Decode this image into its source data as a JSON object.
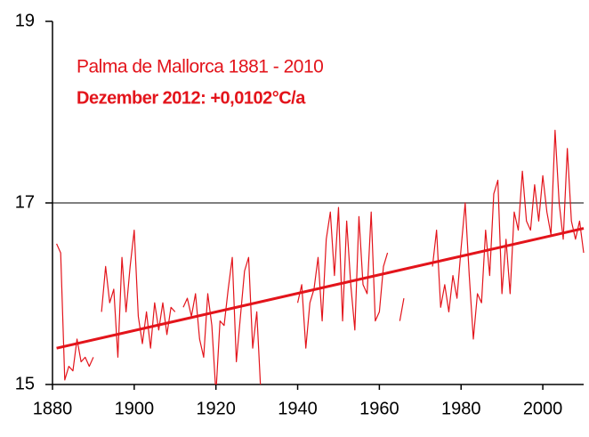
{
  "chart_data": {
    "type": "line",
    "title": "Palma de Mallorca 1881 - 2010",
    "subtitle": "Dezember 2012: +0,0102°C/a",
    "x": [
      1881,
      1882,
      1883,
      1884,
      1885,
      1886,
      1887,
      1888,
      1889,
      1890,
      1891,
      1892,
      1893,
      1894,
      1895,
      1896,
      1897,
      1898,
      1899,
      1900,
      1901,
      1902,
      1903,
      1904,
      1905,
      1906,
      1907,
      1908,
      1909,
      1910,
      1911,
      1912,
      1913,
      1914,
      1915,
      1916,
      1917,
      1918,
      1919,
      1920,
      1921,
      1922,
      1923,
      1924,
      1925,
      1926,
      1927,
      1928,
      1929,
      1930,
      1931,
      1932,
      1933,
      1934,
      1935,
      1936,
      1937,
      1938,
      1939,
      1940,
      1941,
      1942,
      1943,
      1944,
      1945,
      1946,
      1947,
      1948,
      1949,
      1950,
      1951,
      1952,
      1953,
      1954,
      1955,
      1956,
      1957,
      1958,
      1959,
      1960,
      1961,
      1962,
      1963,
      1964,
      1965,
      1966,
      1967,
      1968,
      1969,
      1970,
      1971,
      1972,
      1973,
      1974,
      1975,
      1976,
      1977,
      1978,
      1979,
      1980,
      1981,
      1982,
      1983,
      1984,
      1985,
      1986,
      1987,
      1988,
      1989,
      1990,
      1991,
      1992,
      1993,
      1994,
      1995,
      1996,
      1997,
      1998,
      1999,
      2000,
      2001,
      2002,
      2003,
      2004,
      2005,
      2006,
      2007,
      2008,
      2009,
      2010
    ],
    "series": [
      {
        "color": "#e3141b",
        "values": [
          16.55,
          16.45,
          15.05,
          15.2,
          15.15,
          15.5,
          15.25,
          15.3,
          15.2,
          15.3,
          null,
          15.8,
          16.3,
          15.9,
          16.05,
          15.3,
          16.4,
          15.8,
          16.3,
          16.7,
          15.75,
          15.45,
          15.8,
          15.4,
          15.9,
          15.6,
          15.9,
          15.55,
          15.85,
          15.8,
          null,
          15.85,
          15.95,
          15.75,
          16.0,
          15.5,
          15.3,
          16.0,
          15.65,
          14.9,
          15.7,
          15.65,
          16.05,
          16.4,
          15.25,
          15.75,
          16.25,
          16.4,
          15.4,
          15.8,
          14.9,
          null,
          null,
          15.1,
          null,
          null,
          null,
          null,
          null,
          15.9,
          16.1,
          15.4,
          15.9,
          16.05,
          16.4,
          15.7,
          16.6,
          16.9,
          16.2,
          16.95,
          15.7,
          16.8,
          16.1,
          15.6,
          16.85,
          16.1,
          16.0,
          16.9,
          15.7,
          15.8,
          16.3,
          16.45,
          null,
          null,
          15.7,
          15.95,
          null,
          null,
          null,
          null,
          null,
          null,
          16.3,
          16.7,
          15.85,
          16.1,
          15.8,
          16.2,
          15.95,
          16.5,
          17.0,
          16.2,
          15.5,
          16.0,
          15.9,
          16.7,
          16.2,
          17.1,
          17.25,
          16.0,
          16.6,
          16.0,
          16.9,
          16.7,
          17.35,
          16.8,
          16.7,
          17.2,
          16.8,
          17.3,
          16.9,
          16.65,
          17.8,
          17.0,
          16.6,
          17.6,
          16.8,
          16.6,
          16.8,
          16.45
        ]
      }
    ],
    "trend": {
      "color": "#e3141b",
      "x": [
        1881,
        2010
      ],
      "values": [
        15.4,
        16.72
      ]
    },
    "xlim": [
      1880,
      2010
    ],
    "xticks": [
      1880,
      1900,
      1920,
      1940,
      1960,
      1980,
      2000
    ],
    "ylim": [
      15,
      19
    ],
    "yticks": [
      15,
      17,
      19
    ],
    "grid": true
  }
}
